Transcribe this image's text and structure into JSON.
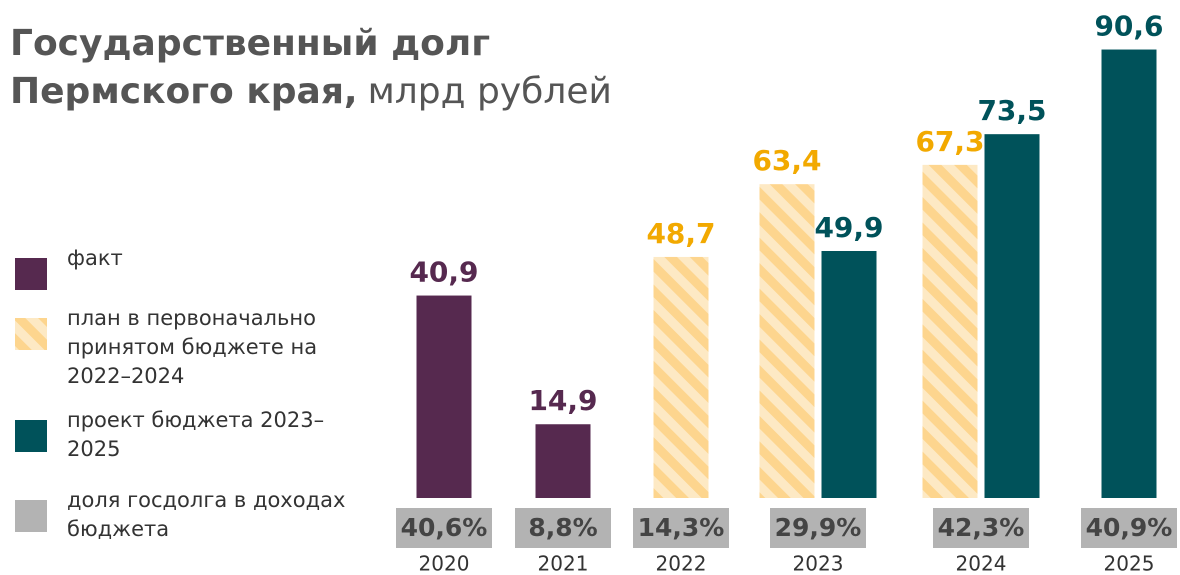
{
  "chart_data": {
    "type": "bar",
    "title_lines": [
      "Государственный долг",
      "Пермского края,"
    ],
    "unit": "млрд рублей",
    "categories": [
      "2020",
      "2021",
      "2022",
      "2023",
      "2024",
      "2025"
    ],
    "ylim": [
      0,
      100
    ],
    "yticks": [],
    "series": [
      {
        "name": "факт",
        "color": "#56294f",
        "label_color": "#56294f",
        "pattern": "solid",
        "values": [
          40.9,
          14.9,
          null,
          null,
          null,
          null
        ],
        "value_labels": [
          "40,9",
          "14,9",
          null,
          null,
          null,
          null
        ]
      },
      {
        "name": "план в первоначально принятом бюджете на 2022–2024",
        "color": "#fdd58e",
        "label_color": "#f2a900",
        "pattern": "hatch",
        "values": [
          null,
          null,
          48.7,
          63.4,
          67.3,
          null
        ],
        "value_labels": [
          null,
          null,
          "48,7",
          "63,4",
          "67,3",
          null
        ]
      },
      {
        "name": "проект бюджета 2023–2025",
        "color": "#00525a",
        "label_color": "#00525a",
        "pattern": "solid",
        "values": [
          null,
          null,
          null,
          49.9,
          73.5,
          90.6
        ],
        "value_labels": [
          null,
          null,
          null,
          "49,9",
          "73,5",
          "90,6"
        ]
      }
    ],
    "share": {
      "name": "доля госдолга в доходах бюджета",
      "color": "#b3b3b3",
      "values": [
        40.6,
        8.8,
        14.3,
        29.9,
        42.3,
        40.9
      ],
      "value_labels": [
        "40,6%",
        "8,8%",
        "14,3%",
        "29,9%",
        "42,3%",
        "40,9%"
      ]
    }
  }
}
